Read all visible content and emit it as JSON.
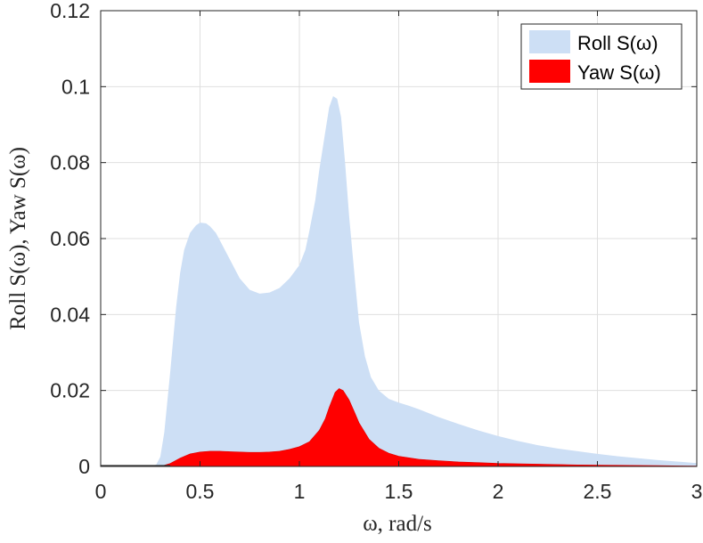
{
  "chart_data": {
    "type": "area",
    "xlabel": "ω, rad/s",
    "ylabel": "Roll S(ω), Yaw S(ω)",
    "xlim": [
      0,
      3
    ],
    "ylim": [
      0,
      0.12
    ],
    "xticks": [
      0,
      0.5,
      1,
      1.5,
      2,
      2.5,
      3
    ],
    "xtick_labels": [
      "0",
      "0.5",
      "1",
      "1.5",
      "2",
      "2.5",
      "3"
    ],
    "yticks": [
      0,
      0.02,
      0.04,
      0.06,
      0.08,
      0.1,
      0.12
    ],
    "ytick_labels": [
      "0",
      "0.02",
      "0.04",
      "0.06",
      "0.08",
      "0.1",
      "0.12"
    ],
    "grid": true,
    "legend_position": "top-right",
    "series": [
      {
        "name": "Roll S(ω)",
        "color": "#cddff5",
        "x": [
          0,
          0.25,
          0.28,
          0.3,
          0.32,
          0.35,
          0.38,
          0.4,
          0.42,
          0.45,
          0.48,
          0.5,
          0.53,
          0.55,
          0.58,
          0.6,
          0.65,
          0.7,
          0.75,
          0.8,
          0.85,
          0.9,
          0.95,
          1.0,
          1.03,
          1.05,
          1.08,
          1.1,
          1.13,
          1.15,
          1.17,
          1.19,
          1.21,
          1.23,
          1.25,
          1.28,
          1.3,
          1.33,
          1.36,
          1.4,
          1.45,
          1.5,
          1.55,
          1.6,
          1.7,
          1.8,
          1.9,
          2.0,
          2.1,
          2.2,
          2.3,
          2.4,
          2.5,
          2.6,
          2.7,
          2.8,
          2.9,
          3.0
        ],
        "values": [
          0,
          0,
          0.0005,
          0.0025,
          0.009,
          0.025,
          0.042,
          0.051,
          0.057,
          0.0615,
          0.0635,
          0.0642,
          0.064,
          0.0632,
          0.0615,
          0.0595,
          0.0545,
          0.0495,
          0.0465,
          0.0455,
          0.0458,
          0.047,
          0.0495,
          0.053,
          0.057,
          0.062,
          0.07,
          0.078,
          0.088,
          0.0945,
          0.0975,
          0.0968,
          0.092,
          0.08,
          0.066,
          0.049,
          0.038,
          0.029,
          0.0235,
          0.02,
          0.0178,
          0.0168,
          0.016,
          0.0151,
          0.013,
          0.0112,
          0.0095,
          0.008,
          0.0067,
          0.0056,
          0.0047,
          0.004,
          0.0033,
          0.0027,
          0.0022,
          0.0017,
          0.0013,
          0.0009
        ]
      },
      {
        "name": "Yaw S(ω)",
        "color": "#ff0000",
        "x": [
          0,
          0.3,
          0.35,
          0.4,
          0.45,
          0.5,
          0.55,
          0.6,
          0.65,
          0.7,
          0.75,
          0.8,
          0.85,
          0.9,
          0.95,
          1.0,
          1.05,
          1.1,
          1.13,
          1.15,
          1.18,
          1.2,
          1.22,
          1.25,
          1.28,
          1.3,
          1.35,
          1.4,
          1.45,
          1.5,
          1.6,
          1.7,
          1.8,
          1.9,
          2.0,
          2.2,
          2.4,
          2.6,
          2.8,
          3.0
        ],
        "values": [
          0,
          0,
          0.0008,
          0.0022,
          0.0033,
          0.0038,
          0.004,
          0.004,
          0.0039,
          0.0038,
          0.0037,
          0.0037,
          0.0038,
          0.004,
          0.0045,
          0.0052,
          0.0065,
          0.0095,
          0.0125,
          0.0155,
          0.0195,
          0.0205,
          0.02,
          0.0175,
          0.014,
          0.0115,
          0.0072,
          0.0048,
          0.0035,
          0.0027,
          0.0019,
          0.0015,
          0.0012,
          0.001,
          0.0008,
          0.0006,
          0.0004,
          0.0003,
          0.0002,
          0.0001
        ]
      }
    ]
  }
}
